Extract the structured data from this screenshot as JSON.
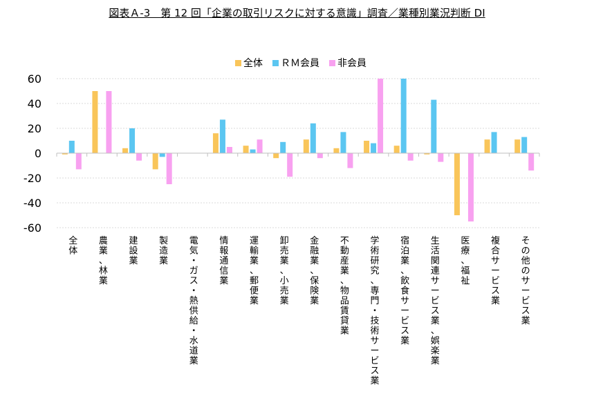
{
  "chart_data": {
    "type": "bar",
    "title": "図表Ａ-3　第 12 回「企業の取引リスクに対する意識」調査／業種別業況判断 DI",
    "ylim": [
      -60,
      60
    ],
    "yticks": [
      60,
      40,
      20,
      0,
      -20,
      -40,
      -60
    ],
    "grid": true,
    "legend_position": "top",
    "categories": [
      "全体",
      "農業、林業",
      "建設業",
      "製造業",
      "電気・ガス・熱供給・水道業",
      "情報通信業",
      "運輸業、郵便業",
      "卸売業、小売業",
      "金融業、保険業",
      "不動産業、物品賃貸業",
      "学術研究、専門・技術サービス業",
      "宿泊業、飲食サービス業",
      "生活関連サービス業、娯楽業",
      "医療、福祉",
      "複合サービス業",
      "その他のサービス業"
    ],
    "series": [
      {
        "name": "全体",
        "color": "#F9C55A",
        "values": [
          -1,
          50,
          4,
          -13,
          0,
          16,
          6,
          -4,
          11,
          4,
          10,
          6,
          -1,
          -50,
          11,
          11
        ]
      },
      {
        "name": "ＲＭ会員",
        "color": "#5BC6F1",
        "values": [
          10,
          0,
          20,
          -3,
          0,
          27,
          3,
          9,
          24,
          17,
          8,
          60,
          43,
          0,
          17,
          13
        ]
      },
      {
        "name": "非会員",
        "color": "#F8A1F0",
        "values": [
          -13,
          50,
          -6,
          -25,
          0,
          5,
          11,
          -19,
          -4,
          -12,
          60,
          -6,
          -7,
          -55,
          0,
          -14
        ]
      }
    ]
  }
}
